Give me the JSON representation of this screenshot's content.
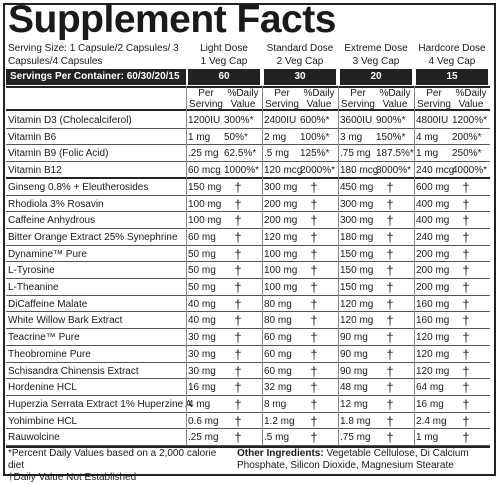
{
  "title": "Supplement Facts",
  "serving_size": "Serving Size: 1 Capsule/2 Capsules/ 3 Capsules/4 Capsules",
  "servings_per_container": "Servings Per Container: 60/30/20/15",
  "columns": [
    {
      "name": "Light Dose",
      "cap": "1 Veg Cap",
      "servings": "60"
    },
    {
      "name": "Standard Dose",
      "cap": "2 Veg Cap",
      "servings": "30"
    },
    {
      "name": "Extreme Dose",
      "cap": "3 Veg Cap",
      "servings": "20"
    },
    {
      "name": "Hardcore Dose",
      "cap": "4 Veg Cap",
      "servings": "15"
    }
  ],
  "subheaders": {
    "per": "Per",
    "serving": "Serving",
    "pct": "%Daily",
    "value": "Value"
  },
  "dagger": "†",
  "ingredients": [
    {
      "name": "Vitamin D3 (Cholecalciferol)",
      "amts": [
        "1200IU",
        "2400IU",
        "3600IU",
        "4800IU"
      ],
      "dvs": [
        "300%*",
        "600%*",
        "900%*",
        "1200%*"
      ]
    },
    {
      "name": "Vitamin B6",
      "amts": [
        "1 mg",
        "2 mg",
        "3 mg",
        "4 mg"
      ],
      "dvs": [
        "50%*",
        "100%*",
        "150%*",
        "200%*"
      ]
    },
    {
      "name": "Vitamin B9 (Folic Acid)",
      "amts": [
        ".25 mg",
        ".5 mg",
        ".75 mg",
        "1 mg"
      ],
      "dvs": [
        "62.5%*",
        "125%*",
        "187.5%*",
        "250%*"
      ]
    },
    {
      "name": "Vitamin B12",
      "amts": [
        "60 mcg",
        "120 mcg",
        "180 mcg",
        "240 mcg"
      ],
      "dvs": [
        "1000%*",
        "2000%*",
        "3000%*",
        "4000%*"
      ]
    },
    {
      "name": "Ginseng 0.8% + Eleutherosides",
      "amts": [
        "150 mg",
        "300 mg",
        "450 mg",
        "600 mg"
      ],
      "dvs": [
        "†",
        "†",
        "†",
        "†"
      ]
    },
    {
      "name": "Rhodiola 3% Rosavin",
      "amts": [
        "100 mg",
        "200 mg",
        "300 mg",
        "400 mg"
      ],
      "dvs": [
        "†",
        "†",
        "†",
        "†"
      ]
    },
    {
      "name": "Caffeine Anhydrous",
      "amts": [
        "100 mg",
        "200 mg",
        "300 mg",
        "400 mg"
      ],
      "dvs": [
        "†",
        "†",
        "†",
        "†"
      ]
    },
    {
      "name": "Bitter Orange Extract 25% Synephrine",
      "amts": [
        "60 mg",
        "120 mg",
        "180 mg",
        "240 mg"
      ],
      "dvs": [
        "†",
        "†",
        "†",
        "†"
      ]
    },
    {
      "name": "Dynamine™ Pure",
      "amts": [
        "50 mg",
        "100 mg",
        "150 mg",
        "200 mg"
      ],
      "dvs": [
        "†",
        "†",
        "†",
        "†"
      ]
    },
    {
      "name": "L-Tyrosine",
      "amts": [
        "50 mg",
        "100 mg",
        "150 mg",
        "200 mg"
      ],
      "dvs": [
        "†",
        "†",
        "†",
        "†"
      ]
    },
    {
      "name": "L-Theanine",
      "amts": [
        "50 mg",
        "100 mg",
        "150 mg",
        "200 mg"
      ],
      "dvs": [
        "†",
        "†",
        "†",
        "†"
      ]
    },
    {
      "name": "DiCaffeine Malate",
      "amts": [
        "40 mg",
        "80 mg",
        "120 mg",
        "160 mg"
      ],
      "dvs": [
        "†",
        "†",
        "†",
        "†"
      ]
    },
    {
      "name": "White Willow Bark Extract",
      "amts": [
        "40 mg",
        "80 mg",
        "120 mg",
        "160 mg"
      ],
      "dvs": [
        "†",
        "†",
        "†",
        "†"
      ]
    },
    {
      "name": "Teacrine™ Pure",
      "amts": [
        "30 mg",
        "60 mg",
        "90 mg",
        "120 mg"
      ],
      "dvs": [
        "†",
        "†",
        "†",
        "†"
      ]
    },
    {
      "name": "Theobromine Pure",
      "amts": [
        "30 mg",
        "60 mg",
        "90 mg",
        "120 mg"
      ],
      "dvs": [
        "†",
        "†",
        "†",
        "†"
      ]
    },
    {
      "name": "Schisandra Chinensis Extract",
      "amts": [
        "30 mg",
        "60 mg",
        "90 mg",
        "120 mg"
      ],
      "dvs": [
        "†",
        "†",
        "†",
        "†"
      ]
    },
    {
      "name": "Hordenine HCL",
      "amts": [
        "16 mg",
        "32 mg",
        "48 mg",
        "64 mg"
      ],
      "dvs": [
        "†",
        "†",
        "†",
        "†"
      ]
    },
    {
      "name": "Huperzia Serrata Extract 1% Huperzine A",
      "amts": [
        "4 mg",
        "8 mg",
        "12 mg",
        "16 mg"
      ],
      "dvs": [
        "†",
        "†",
        "†",
        "†"
      ]
    },
    {
      "name": "Yohimbine HCL",
      "amts": [
        "0.6 mg",
        "1.2 mg",
        "1.8 mg",
        "2.4 mg"
      ],
      "dvs": [
        "†",
        "†",
        "†",
        "†"
      ]
    },
    {
      "name": "Rauwolcine",
      "amts": [
        ".25 mg",
        ".5 mg",
        ".75 mg",
        "1 mg"
      ],
      "dvs": [
        "†",
        "†",
        "†",
        "†"
      ]
    }
  ],
  "footnote_1": "*Percent Daily Values based on a 2,000 calorie diet",
  "footnote_2": "†Daily Value Not Established",
  "other_ingredients_label": "Other Ingredients:",
  "other_ingredients": "Vegetable Cellulose, Di Calcium Phosphate, Silicon Dioxide, Magnesium Stearate",
  "colors": {
    "bar": "#222222",
    "text": "#1a1a1a",
    "background": "#ffffff"
  }
}
